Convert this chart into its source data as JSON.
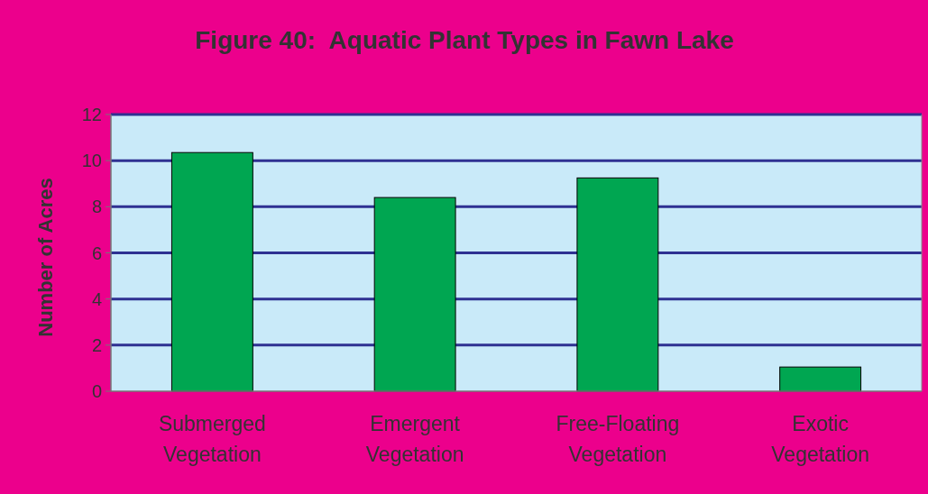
{
  "chart_data": {
    "type": "bar",
    "title": "Figure 40:  Aquatic Plant Types in Fawn Lake",
    "ylabel": "Number of Acres",
    "categories": [
      "Submerged Vegetation",
      "Emergent Vegetation",
      "Free-Floating Vegetation",
      "Exotic Vegetation"
    ],
    "values": [
      10.35,
      8.4,
      9.25,
      1.05
    ],
    "color": "#00a651",
    "ylim": [
      0,
      12
    ],
    "yticks": [
      0,
      2,
      4,
      6,
      8,
      10,
      12
    ],
    "grid": "y"
  }
}
